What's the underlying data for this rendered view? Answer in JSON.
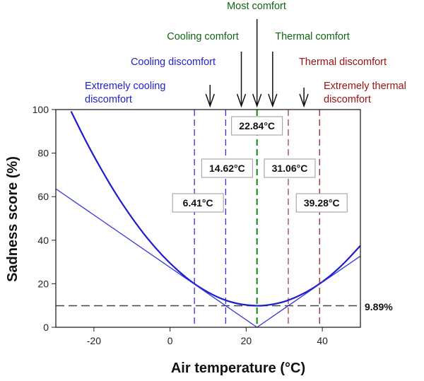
{
  "chart_data": {
    "type": "line",
    "xlabel": "Air temperature (°C)",
    "ylabel": "Sadness score (%)",
    "xlim": [
      -30,
      50
    ],
    "ylim": [
      0,
      100
    ],
    "xticks": [
      -20,
      0,
      20,
      40
    ],
    "yticks": [
      0,
      20,
      40,
      60,
      80,
      100
    ],
    "grid": false,
    "series": [
      {
        "color": "#1c1ccc",
        "x": [
          -26,
          -22,
          -18,
          -14,
          -10,
          -6,
          -2,
          2,
          6,
          10,
          14,
          18,
          22.84,
          26,
          30,
          34,
          38,
          42,
          46,
          50
        ],
        "y": [
          99.2,
          85.2,
          72.4,
          60.7,
          50.3,
          41.0,
          33.0,
          26.2,
          20.5,
          16.1,
          12.8,
          10.8,
          9.89,
          10.3,
          11.8,
          14.6,
          18.5,
          23.6,
          30.0,
          37.5
        ]
      },
      {
        "color": "#3333dd",
        "x": [
          -30,
          22.84,
          50
        ],
        "y": [
          63.6,
          0,
          32.7
        ]
      }
    ],
    "hline": {
      "y": 9.89,
      "label": "9.89%",
      "color": "#444444"
    },
    "vlines": [
      {
        "x": 6.41,
        "label": "6.41°C",
        "color": "#3333cc"
      },
      {
        "x": 14.62,
        "label": "14.62°C",
        "color": "#3333cc"
      },
      {
        "x": 22.84,
        "label": "22.84°C",
        "color": "#118811"
      },
      {
        "x": 31.06,
        "label": "31.06°C",
        "color": "#994444"
      },
      {
        "x": 39.28,
        "label": "39.28°C",
        "color": "#992222"
      }
    ],
    "zones": [
      {
        "label": [
          "Extremely cooling",
          "discomfort"
        ],
        "color": "#2222cc",
        "arrow": false
      },
      {
        "label": [
          "Cooling discomfort"
        ],
        "color": "#2222cc",
        "arrow": true
      },
      {
        "label": [
          "Cooling comfort"
        ],
        "color": "#116611",
        "arrow": true
      },
      {
        "label": [
          "Most comfort"
        ],
        "color": "#116611",
        "arrow": true
      },
      {
        "label": [
          "Thermal comfort"
        ],
        "color": "#116611",
        "arrow": true
      },
      {
        "label": [
          "Thermal discomfort"
        ],
        "color": "#991111",
        "arrow": true
      },
      {
        "label": [
          "Extremely thermal",
          "discomfort"
        ],
        "color": "#991111",
        "arrow": false
      }
    ]
  }
}
